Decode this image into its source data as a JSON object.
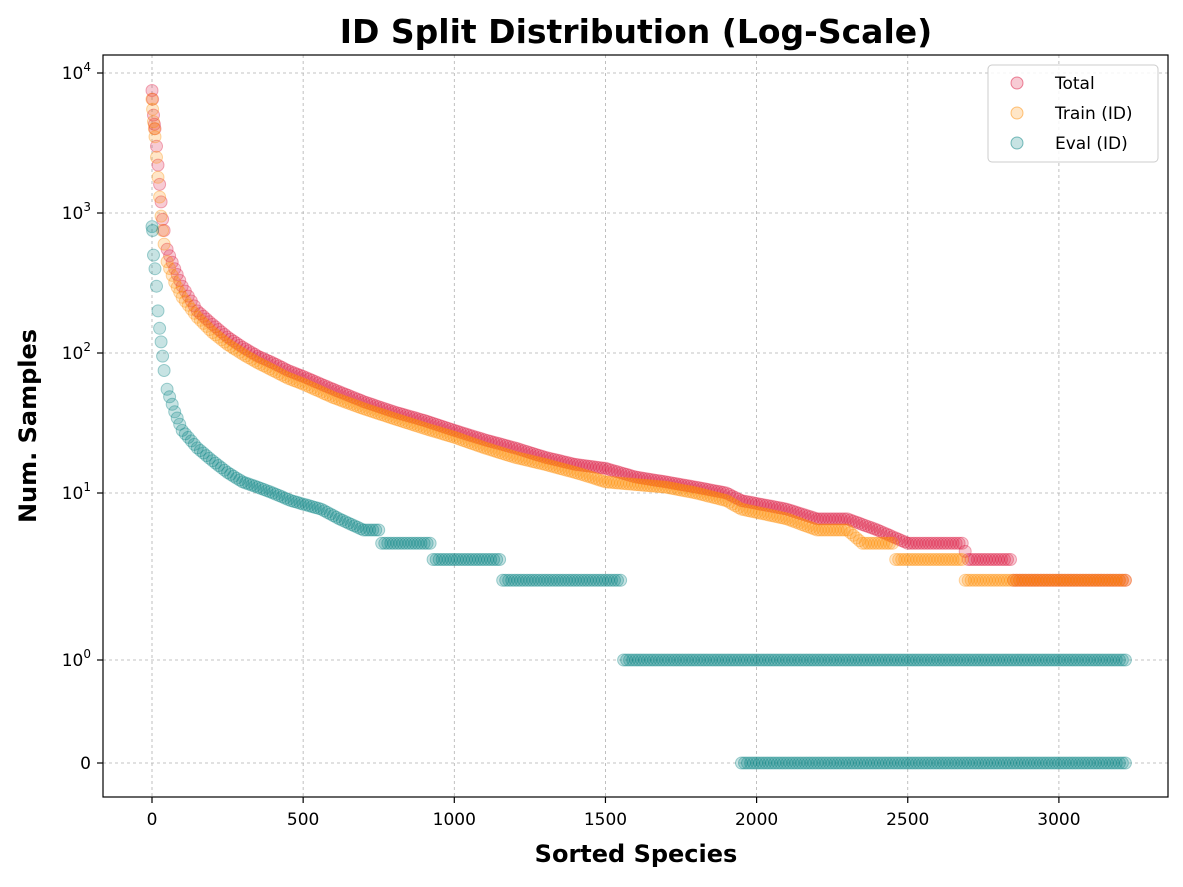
{
  "chart_data": {
    "type": "scatter",
    "title": "ID Split Distribution (Log-Scale)",
    "xlabel": "Sorted Species",
    "ylabel": "Num. Samples",
    "xlim": [
      -160,
      3380
    ],
    "x_ticks": [
      {
        "value": 0,
        "label": "0"
      },
      {
        "value": 500,
        "label": "500"
      },
      {
        "value": 1000,
        "label": "1000"
      },
      {
        "value": 1500,
        "label": "1500"
      },
      {
        "value": 2000,
        "label": "2000"
      },
      {
        "value": 2500,
        "label": "2500"
      },
      {
        "value": 3000,
        "label": "3000"
      }
    ],
    "y_scale": "symlog (linear near zero, log above 1)",
    "y_ticks": [
      {
        "value": 0,
        "base": "0",
        "exp": ""
      },
      {
        "value": 1,
        "base": "10",
        "exp": "0"
      },
      {
        "value": 10,
        "base": "10",
        "exp": "1"
      },
      {
        "value": 100,
        "base": "10",
        "exp": "2"
      },
      {
        "value": 1000,
        "base": "10",
        "exp": "3"
      },
      {
        "value": 10000,
        "base": "10",
        "exp": "4"
      }
    ],
    "grid": true,
    "legend_position": "top-right",
    "marker": "circle",
    "series": [
      {
        "name": "Total",
        "color": "#DC143C",
        "points": [
          [
            0,
            7500
          ],
          [
            2,
            6500
          ],
          [
            5,
            5000
          ],
          [
            8,
            4300
          ],
          [
            10,
            4000
          ],
          [
            15,
            3000
          ],
          [
            20,
            2200
          ],
          [
            25,
            1600
          ],
          [
            30,
            1200
          ],
          [
            35,
            900
          ],
          [
            40,
            750
          ],
          [
            50,
            550
          ],
          [
            75,
            400
          ],
          [
            100,
            300
          ],
          [
            150,
            200
          ],
          [
            200,
            160
          ],
          [
            250,
            130
          ],
          [
            300,
            110
          ],
          [
            350,
            95
          ],
          [
            400,
            85
          ],
          [
            450,
            75
          ],
          [
            500,
            68
          ],
          [
            600,
            55
          ],
          [
            700,
            45
          ],
          [
            800,
            38
          ],
          [
            900,
            33
          ],
          [
            1000,
            28
          ],
          [
            1100,
            24
          ],
          [
            1200,
            21
          ],
          [
            1300,
            18
          ],
          [
            1400,
            16
          ],
          [
            1500,
            15
          ],
          [
            1600,
            13
          ],
          [
            1700,
            12
          ],
          [
            1800,
            11
          ],
          [
            1900,
            10
          ],
          [
            1950,
            9
          ],
          [
            2100,
            8
          ],
          [
            2200,
            7
          ],
          [
            2300,
            7
          ],
          [
            2400,
            6
          ],
          [
            2500,
            5
          ],
          [
            2680,
            5
          ],
          [
            2700,
            4
          ],
          [
            2840,
            4
          ],
          [
            2850,
            3
          ],
          [
            3220,
            3
          ]
        ]
      },
      {
        "name": "Train (ID)",
        "color": "#FF8C00",
        "points": [
          [
            0,
            6500
          ],
          [
            2,
            5500
          ],
          [
            5,
            4500
          ],
          [
            8,
            4000
          ],
          [
            10,
            3500
          ],
          [
            15,
            2500
          ],
          [
            20,
            1800
          ],
          [
            25,
            1300
          ],
          [
            30,
            950
          ],
          [
            35,
            750
          ],
          [
            40,
            600
          ],
          [
            50,
            450
          ],
          [
            75,
            320
          ],
          [
            100,
            250
          ],
          [
            150,
            180
          ],
          [
            200,
            140
          ],
          [
            250,
            115
          ],
          [
            300,
            98
          ],
          [
            350,
            85
          ],
          [
            400,
            75
          ],
          [
            450,
            66
          ],
          [
            500,
            60
          ],
          [
            600,
            48
          ],
          [
            700,
            40
          ],
          [
            800,
            34
          ],
          [
            900,
            29
          ],
          [
            1000,
            25
          ],
          [
            1100,
            21
          ],
          [
            1200,
            18
          ],
          [
            1300,
            16
          ],
          [
            1400,
            14
          ],
          [
            1450,
            13
          ],
          [
            1500,
            12
          ],
          [
            1700,
            11
          ],
          [
            1800,
            10
          ],
          [
            1900,
            9
          ],
          [
            1950,
            8
          ],
          [
            2100,
            7
          ],
          [
            2200,
            6
          ],
          [
            2300,
            6
          ],
          [
            2350,
            5
          ],
          [
            2450,
            5
          ],
          [
            2460,
            4
          ],
          [
            2680,
            4
          ],
          [
            2690,
            3
          ],
          [
            3220,
            3
          ]
        ]
      },
      {
        "name": "Eval (ID)",
        "color": "#008080",
        "points": [
          [
            0,
            800
          ],
          [
            2,
            750
          ],
          [
            5,
            500
          ],
          [
            10,
            400
          ],
          [
            15,
            300
          ],
          [
            20,
            200
          ],
          [
            25,
            150
          ],
          [
            30,
            120
          ],
          [
            35,
            95
          ],
          [
            40,
            75
          ],
          [
            50,
            55
          ],
          [
            75,
            38
          ],
          [
            100,
            28
          ],
          [
            150,
            21
          ],
          [
            200,
            17
          ],
          [
            250,
            14
          ],
          [
            300,
            12
          ],
          [
            350,
            11
          ],
          [
            400,
            10
          ],
          [
            460,
            9
          ],
          [
            560,
            8
          ],
          [
            620,
            7
          ],
          [
            700,
            6
          ],
          [
            750,
            6
          ],
          [
            760,
            5
          ],
          [
            920,
            5
          ],
          [
            930,
            4
          ],
          [
            1150,
            4
          ],
          [
            1160,
            3
          ],
          [
            1550,
            3
          ],
          [
            1560,
            1
          ],
          [
            3220,
            1
          ],
          [
            1950,
            0
          ],
          [
            3220,
            0
          ]
        ]
      }
    ]
  }
}
